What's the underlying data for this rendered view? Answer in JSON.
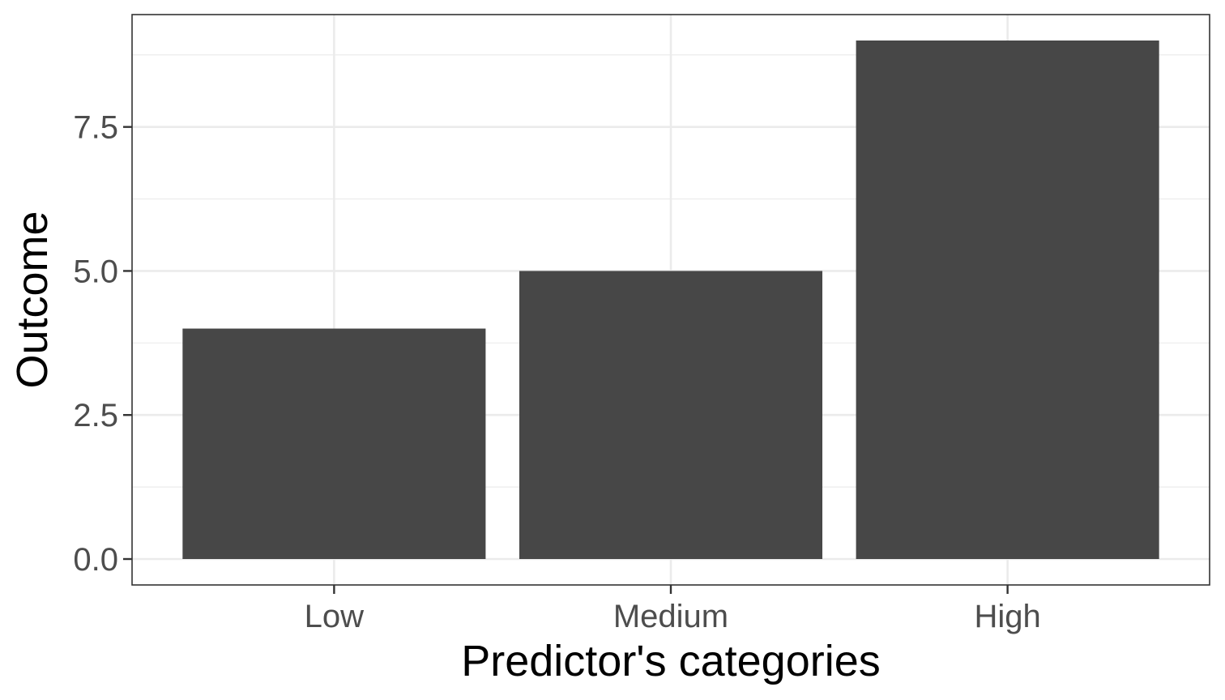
{
  "chart_data": {
    "type": "bar",
    "title": "",
    "xlabel": "Predictor's categories",
    "ylabel": "Outcome",
    "categories": [
      "Low",
      "Medium",
      "High"
    ],
    "values": [
      4,
      5,
      9
    ],
    "ylim": [
      -0.45,
      9.45
    ],
    "y_ticks": [
      0,
      2.5,
      5,
      7.5
    ],
    "y_tick_labels": [
      "0.0",
      "2.5",
      "5.0",
      "7.5"
    ],
    "grid": true,
    "legend": "none",
    "bar_color": "#474747",
    "grid_color": "#ebebeb",
    "panel_border_color": "#333333"
  }
}
